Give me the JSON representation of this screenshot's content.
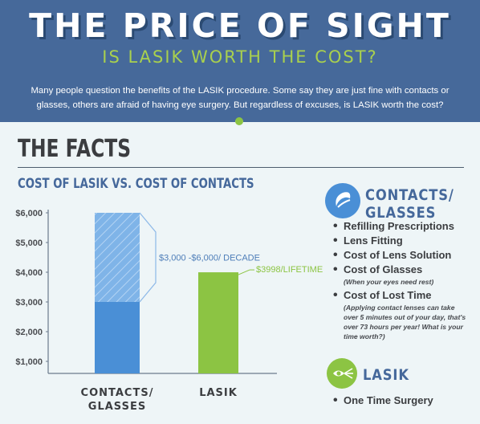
{
  "header": {
    "title": "THE PRICE OF SIGHT",
    "subtitle": "IS LASIK WORTH THE COST?",
    "intro": "Many people question the benefits of the LASIK procedure. Some say they are just fine with contacts or glasses, others are afraid of having eye surgery. But regardless of excuses, is LASIK worth the cost?"
  },
  "section": {
    "heading": "THE FACTS"
  },
  "chart_data": {
    "type": "bar",
    "title": "COST OF LASIK VS. COST OF CONTACTS",
    "categories": [
      "CONTACTS/\nGLASSES",
      "LASIK"
    ],
    "series": [
      {
        "values": [
          3000,
          3998
        ]
      },
      {
        "values": [
          3000,
          0
        ]
      }
    ],
    "ranges": [
      {
        "category": "CONTACTS/\nGLASSES",
        "low": 3000,
        "high": 6000
      }
    ],
    "annotations": [
      {
        "category": "CONTACTS/\nGLASSES",
        "text": "$3,000 -$6,000/ DECADE",
        "color": "#4d7db8"
      },
      {
        "category": "LASIK",
        "text": "$3998/LIFETIME",
        "color": "#8cc443"
      }
    ],
    "ytick_labels": [
      "$1,000",
      "$2,000",
      "$3,000",
      "$4,000",
      "$5,000",
      "$6,000"
    ],
    "ytick_values": [
      1000,
      2000,
      3000,
      4000,
      5000,
      6000
    ],
    "ylim": [
      0,
      6000
    ],
    "xlabel": "",
    "ylabel": "",
    "grid": false,
    "legend": "none",
    "colors": {
      "contacts": "#4a8fd6",
      "contacts_range": "#7fb4e8",
      "lasik": "#8cc443"
    }
  },
  "sidebar": {
    "contacts": {
      "heading": "CONTACTS/\nGLASSES",
      "icon": "contact-lens-icon",
      "items": [
        {
          "label": "Refilling Prescriptions",
          "note": ""
        },
        {
          "label": "Lens Fitting",
          "note": ""
        },
        {
          "label": "Cost of Lens Solution",
          "note": ""
        },
        {
          "label": "Cost of Glasses",
          "note": "(When your eyes need rest)"
        },
        {
          "label": "Cost of Lost Time",
          "note": "(Applying contact lenses can take over 5 minutes out of your day, that's over 73 hours per year! What is your time worth?)"
        }
      ]
    },
    "lasik": {
      "heading": "LASIK",
      "icon": "eye-laser-icon",
      "items": [
        {
          "label": "One Time Surgery",
          "note": ""
        }
      ]
    }
  },
  "colors": {
    "header_bg": "#46699a",
    "accent_green": "#8cc443",
    "page_bg": "#eef5f7"
  }
}
